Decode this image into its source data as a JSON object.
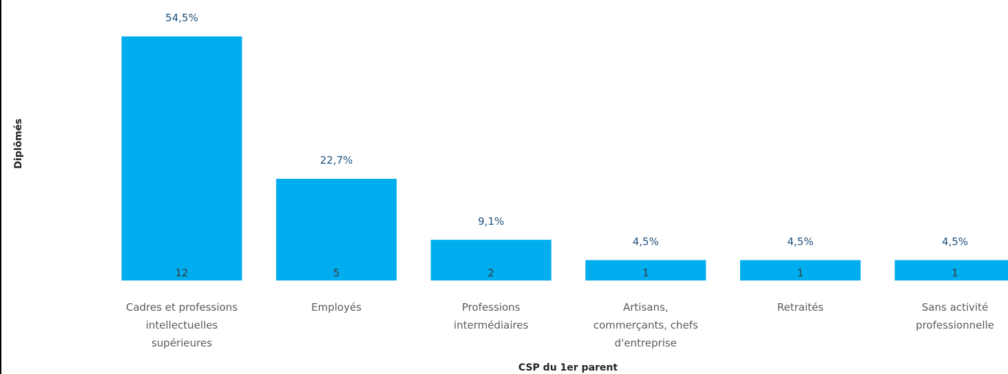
{
  "chart_data": {
    "type": "bar",
    "xlabel": "CSP du 1er parent",
    "ylabel": "Diplômés",
    "categories": [
      [
        "Cadres et professions",
        "intellectuelles",
        "supérieures"
      ],
      [
        "Employés"
      ],
      [
        "Professions",
        "intermédiaires"
      ],
      [
        "Artisans,",
        "commerçants, chefs",
        "d'entreprise"
      ],
      [
        "Retraités"
      ],
      [
        "Sans activité",
        "professionnelle"
      ]
    ],
    "values": [
      12,
      5,
      2,
      1,
      1,
      1
    ],
    "percent_labels": [
      "54,5%",
      "22,7%",
      "9,1%",
      "4,5%",
      "4,5%",
      "4,5%"
    ],
    "ylim": [
      0,
      12
    ],
    "grid": false,
    "legend": "none"
  },
  "colors": {
    "bar": "#00ADEE",
    "percent_text": "#1D4F7C",
    "count_text": "#3A3A3A",
    "category_text": "#5A5A5A",
    "axis_title": "#222222"
  }
}
